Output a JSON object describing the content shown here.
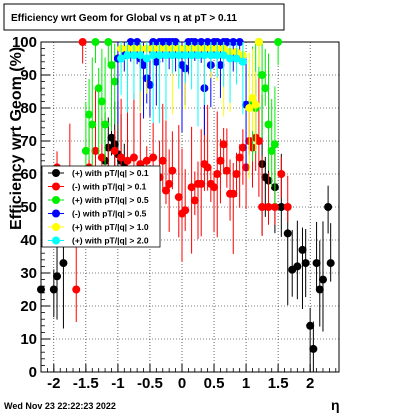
{
  "chart_data": {
    "type": "scatter",
    "title": "Efficiency wrt Geom for Global vs   η at pT > 0.11",
    "xlabel": "η",
    "ylabel": "Efficiency wrt Geom (%)",
    "xlim": [
      -2.2,
      2.45
    ],
    "ylim": [
      0,
      100
    ],
    "xticks": [
      "-2",
      "-1.5",
      "-1",
      "-0.5",
      "0",
      "0.5",
      "1",
      "1.5",
      "2"
    ],
    "xtick_values": [
      -2,
      -1.5,
      -1,
      -0.5,
      0,
      0.5,
      1,
      1.5,
      2
    ],
    "yticks": [
      "0",
      "10",
      "20",
      "30",
      "40",
      "50",
      "60",
      "70",
      "80",
      "90",
      "100"
    ],
    "ytick_values": [
      0,
      10,
      20,
      30,
      40,
      50,
      60,
      70,
      80,
      90,
      100
    ],
    "grid": true,
    "legend_position": "left-middle",
    "footer": "Wed Nov 23 22:22:23 2022",
    "series": [
      {
        "name": "(+) with pT/|q| > 0.1",
        "color": "#000000",
        "points": [
          [
            -2.2,
            25
          ],
          [
            -2.0,
            25
          ],
          [
            -1.95,
            29
          ],
          [
            -1.85,
            33
          ],
          [
            -1.2,
            64
          ],
          [
            -1.15,
            68
          ],
          [
            -1.1,
            71
          ],
          [
            -1.05,
            69
          ],
          [
            -1.0,
            66
          ],
          [
            -0.95,
            64
          ],
          [
            -0.9,
            62
          ],
          [
            1.25,
            63
          ],
          [
            1.3,
            59
          ],
          [
            1.35,
            58
          ],
          [
            1.45,
            56
          ],
          [
            1.55,
            50
          ],
          [
            1.65,
            42
          ],
          [
            1.72,
            31
          ],
          [
            1.8,
            32
          ],
          [
            1.88,
            37
          ],
          [
            1.93,
            33
          ],
          [
            2.0,
            14
          ],
          [
            2.05,
            7
          ],
          [
            2.1,
            33
          ],
          [
            2.15,
            25
          ],
          [
            2.2,
            28
          ],
          [
            2.28,
            50
          ],
          [
            2.32,
            33
          ]
        ]
      },
      {
        "name": "(-) with pT/|q| > 0.1",
        "color": "#ff0000",
        "points": [
          [
            -1.95,
            62
          ],
          [
            -1.75,
            59
          ],
          [
            -1.65,
            25
          ],
          [
            -1.55,
            100
          ],
          [
            -1.45,
            62
          ],
          [
            -1.35,
            67
          ],
          [
            -1.25,
            65
          ],
          [
            -1.15,
            61
          ],
          [
            -1.05,
            67
          ],
          [
            -0.95,
            65
          ],
          [
            -0.85,
            64
          ],
          [
            -0.75,
            65
          ],
          [
            -0.65,
            63
          ],
          [
            -0.55,
            64
          ],
          [
            -0.45,
            65
          ],
          [
            -0.35,
            59
          ],
          [
            -0.3,
            64
          ],
          [
            -0.25,
            55
          ],
          [
            -0.2,
            57
          ],
          [
            -0.15,
            61
          ],
          [
            -0.05,
            53
          ],
          [
            0.0,
            48
          ],
          [
            0.05,
            49
          ],
          [
            0.15,
            56
          ],
          [
            0.2,
            52
          ],
          [
            0.25,
            57
          ],
          [
            0.3,
            57
          ],
          [
            0.35,
            63
          ],
          [
            0.4,
            62
          ],
          [
            0.45,
            57
          ],
          [
            0.5,
            56
          ],
          [
            0.55,
            60
          ],
          [
            0.6,
            64
          ],
          [
            0.65,
            69
          ],
          [
            0.7,
            61
          ],
          [
            0.75,
            54
          ],
          [
            0.8,
            54
          ],
          [
            0.85,
            60
          ],
          [
            0.9,
            65
          ],
          [
            0.95,
            68
          ],
          [
            1.0,
            62
          ],
          [
            1.05,
            70
          ],
          [
            1.1,
            68
          ],
          [
            1.15,
            71
          ],
          [
            1.2,
            70
          ],
          [
            1.25,
            50
          ],
          [
            1.35,
            50
          ],
          [
            1.45,
            50
          ],
          [
            1.55,
            60
          ],
          [
            1.65,
            50
          ]
        ]
      },
      {
        "name": "(+) with pT/|q| > 0.5",
        "color": "#00ee00",
        "points": [
          [
            -1.5,
            67
          ],
          [
            -1.45,
            78
          ],
          [
            -1.4,
            75
          ],
          [
            -1.35,
            100
          ],
          [
            -1.3,
            86
          ],
          [
            -1.25,
            82
          ],
          [
            -1.2,
            75
          ],
          [
            -1.15,
            100
          ],
          [
            -1.1,
            93
          ],
          [
            -1.05,
            88
          ],
          [
            1.1,
            82
          ],
          [
            1.15,
            80
          ],
          [
            1.2,
            100
          ],
          [
            1.25,
            90
          ],
          [
            1.3,
            86
          ],
          [
            1.35,
            75
          ],
          [
            1.4,
            67
          ],
          [
            1.45,
            69
          ],
          [
            1.5,
            100
          ]
        ]
      },
      {
        "name": "(-) with pT/|q| > 0.5",
        "color": "#0000ff",
        "points": [
          [
            -1.0,
            95
          ],
          [
            -0.9,
            96
          ],
          [
            -0.8,
            100
          ],
          [
            -0.7,
            100
          ],
          [
            -0.65,
            95
          ],
          [
            -0.6,
            93
          ],
          [
            -0.55,
            89
          ],
          [
            -0.5,
            87
          ],
          [
            -0.45,
            100
          ],
          [
            -0.4,
            94
          ],
          [
            -0.35,
            100
          ],
          [
            -0.3,
            100
          ],
          [
            -0.25,
            100
          ],
          [
            -0.2,
            100
          ],
          [
            -0.15,
            100
          ],
          [
            -0.1,
            100
          ],
          [
            0.0,
            93
          ],
          [
            0.05,
            92
          ],
          [
            0.1,
            100
          ],
          [
            0.15,
            100
          ],
          [
            0.2,
            100
          ],
          [
            0.3,
            100
          ],
          [
            0.35,
            86
          ],
          [
            0.4,
            100
          ],
          [
            0.45,
            93
          ],
          [
            0.5,
            100
          ],
          [
            0.55,
            100
          ],
          [
            0.6,
            93
          ],
          [
            0.65,
            100
          ],
          [
            0.7,
            100
          ],
          [
            0.8,
            100
          ],
          [
            0.9,
            100
          ],
          [
            1.0,
            81
          ]
        ]
      },
      {
        "name": "(+) with pT/|q| > 1.0",
        "color": "#ffff00",
        "points": [
          [
            -0.95,
            98
          ],
          [
            -0.85,
            98
          ],
          [
            -0.75,
            98
          ],
          [
            -0.65,
            98
          ],
          [
            -0.55,
            98
          ],
          [
            -0.45,
            98
          ],
          [
            -0.35,
            98
          ],
          [
            -0.25,
            98
          ],
          [
            -0.15,
            98
          ],
          [
            -0.05,
            98
          ],
          [
            0.05,
            98
          ],
          [
            0.15,
            98
          ],
          [
            0.25,
            98
          ],
          [
            0.35,
            98
          ],
          [
            0.45,
            98
          ],
          [
            0.55,
            98
          ],
          [
            0.65,
            98
          ],
          [
            0.75,
            97
          ],
          [
            0.85,
            97
          ],
          [
            0.95,
            96
          ],
          [
            1.05,
            80
          ],
          [
            1.1,
            83
          ],
          [
            1.15,
            81
          ],
          [
            1.2,
            100
          ]
        ]
      },
      {
        "name": "(+) with pT/|q| > 2.0",
        "color": "#00ffff",
        "points": [
          [
            -0.95,
            95
          ],
          [
            -0.85,
            96
          ],
          [
            -0.75,
            96
          ],
          [
            -0.65,
            96
          ],
          [
            -0.55,
            95
          ],
          [
            -0.45,
            96
          ],
          [
            -0.35,
            96
          ],
          [
            -0.25,
            96
          ],
          [
            -0.15,
            96
          ],
          [
            -0.05,
            96
          ],
          [
            0.05,
            96
          ],
          [
            0.15,
            96
          ],
          [
            0.25,
            96
          ],
          [
            0.35,
            96
          ],
          [
            0.45,
            96
          ],
          [
            0.55,
            96
          ],
          [
            0.65,
            96
          ],
          [
            0.75,
            95
          ],
          [
            0.85,
            95
          ],
          [
            0.95,
            94
          ]
        ]
      }
    ]
  }
}
